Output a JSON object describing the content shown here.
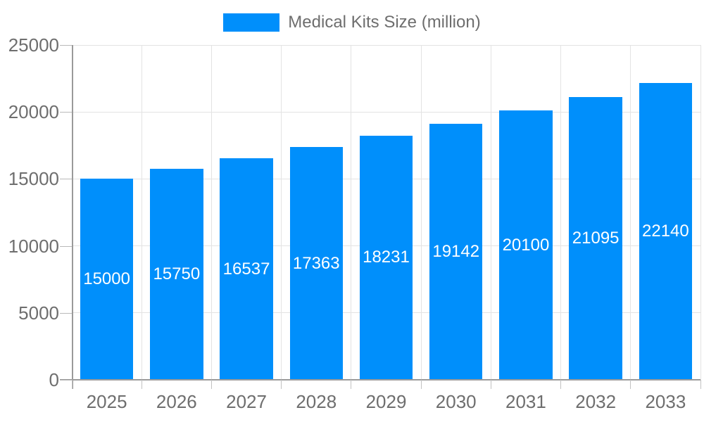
{
  "legend": {
    "label": "Medical Kits Size (million)"
  },
  "colors": {
    "bar": "#008ffb",
    "axis_text": "#6e6e6e",
    "grid_line": "#e3e3e3",
    "axis_line": "#9a9a9a",
    "value_label_text": "#ffffff"
  },
  "chart_data": {
    "type": "bar",
    "title": "Medical Kits Size (million)",
    "categories": [
      "2025",
      "2026",
      "2027",
      "2028",
      "2029",
      "2030",
      "2031",
      "2032",
      "2033"
    ],
    "values": [
      15000,
      15750,
      16537,
      17363,
      18231,
      19142,
      20100,
      21095,
      22140
    ],
    "series": [
      {
        "name": "Medical Kits Size (million)",
        "values": [
          15000,
          15750,
          16537,
          17363,
          18231,
          19142,
          20100,
          21095,
          22140
        ]
      }
    ],
    "xlabel": "",
    "ylabel": "",
    "ylim": [
      0,
      25000
    ],
    "yticks": [
      0,
      5000,
      10000,
      15000,
      20000,
      25000
    ],
    "grid": true,
    "legend_position": "top-center",
    "value_labels_position": "inside-center"
  }
}
